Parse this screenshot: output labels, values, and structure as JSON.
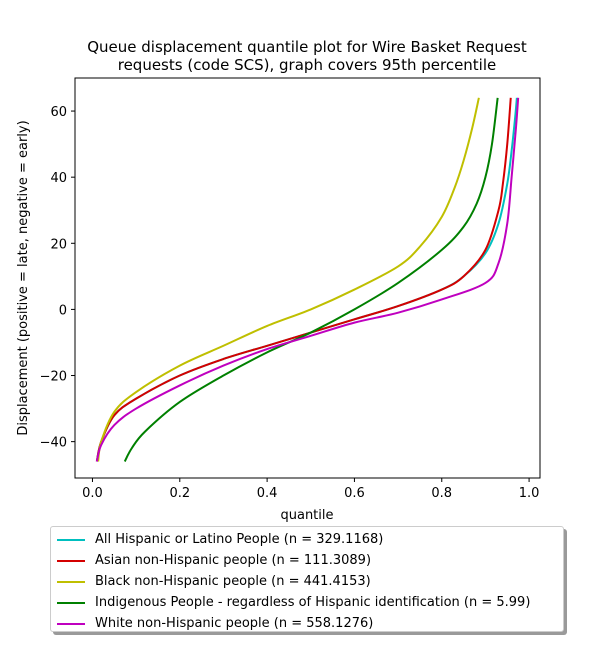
{
  "chart_data": {
    "type": "line",
    "title_line1": "Queue displacement quantile plot for Wire Basket Request",
    "title_line2": "requests (code SCS), graph covers 95th percentile",
    "xlabel": "quantile",
    "ylabel": "Displacement (positive = late, negative = early)",
    "xlim": [
      -0.04,
      1.025
    ],
    "ylim": [
      -51,
      70
    ],
    "xticks": [
      0.0,
      0.2,
      0.4,
      0.6,
      0.8,
      1.0
    ],
    "xtick_labels": [
      "0.0",
      "0.2",
      "0.4",
      "0.6",
      "0.8",
      "1.0"
    ],
    "yticks": [
      -40,
      -20,
      0,
      20,
      40,
      60
    ],
    "ytick_labels": [
      "−40",
      "−20",
      "0",
      "20",
      "40",
      "60"
    ],
    "grid": false,
    "legend_position": "below",
    "series": [
      {
        "name": "All Hispanic or Latino People (n = 329.1168)",
        "color": "#00bfbf",
        "x": [
          0.01,
          0.02,
          0.05,
          0.1,
          0.2,
          0.3,
          0.4,
          0.5,
          0.6,
          0.7,
          0.8,
          0.85,
          0.9,
          0.93,
          0.95,
          0.96,
          0.968,
          0.972
        ],
        "y": [
          -46,
          -40,
          -32,
          -27,
          -20,
          -15,
          -11,
          -7,
          -3,
          1,
          6,
          10,
          17,
          26,
          38,
          48,
          58,
          64
        ]
      },
      {
        "name": "Asian non-Hispanic people (n = 111.3089)",
        "color": "#d40000",
        "x": [
          0.01,
          0.02,
          0.05,
          0.1,
          0.2,
          0.3,
          0.4,
          0.5,
          0.6,
          0.7,
          0.8,
          0.85,
          0.9,
          0.93,
          0.94,
          0.95,
          0.958
        ],
        "y": [
          -46,
          -40,
          -32,
          -27,
          -20,
          -15,
          -11,
          -7,
          -3,
          1,
          6,
          10,
          18,
          30,
          38,
          50,
          64
        ]
      },
      {
        "name": "Black non-Hispanic people (n = 441.4153)",
        "color": "#bfbf00",
        "x": [
          0.013,
          0.02,
          0.05,
          0.1,
          0.2,
          0.3,
          0.4,
          0.5,
          0.6,
          0.7,
          0.75,
          0.8,
          0.83,
          0.85,
          0.87,
          0.885
        ],
        "y": [
          -46,
          -40,
          -31,
          -25,
          -17,
          -11,
          -5,
          0,
          6,
          13,
          19,
          28,
          37,
          45,
          55,
          64
        ]
      },
      {
        "name": "Indigenous People - regardless of Hispanic identification (n = 5.99)",
        "color": "#008000",
        "x": [
          0.074,
          0.09,
          0.12,
          0.2,
          0.3,
          0.4,
          0.5,
          0.6,
          0.7,
          0.8,
          0.85,
          0.88,
          0.9,
          0.915,
          0.928
        ],
        "y": [
          -46,
          -42,
          -37,
          -28,
          -20,
          -13,
          -7,
          0,
          8,
          18,
          25,
          32,
          40,
          50,
          64
        ]
      },
      {
        "name": "White non-Hispanic people (n = 558.1276)",
        "color": "#bf00bf",
        "x": [
          0.01,
          0.02,
          0.05,
          0.1,
          0.2,
          0.3,
          0.4,
          0.5,
          0.6,
          0.7,
          0.8,
          0.9,
          0.93,
          0.95,
          0.96,
          0.97,
          0.975
        ],
        "y": [
          -46,
          -41,
          -35,
          -30,
          -23,
          -17,
          -12,
          -8,
          -4,
          -1,
          3,
          8,
          14,
          26,
          40,
          55,
          64
        ]
      }
    ]
  }
}
